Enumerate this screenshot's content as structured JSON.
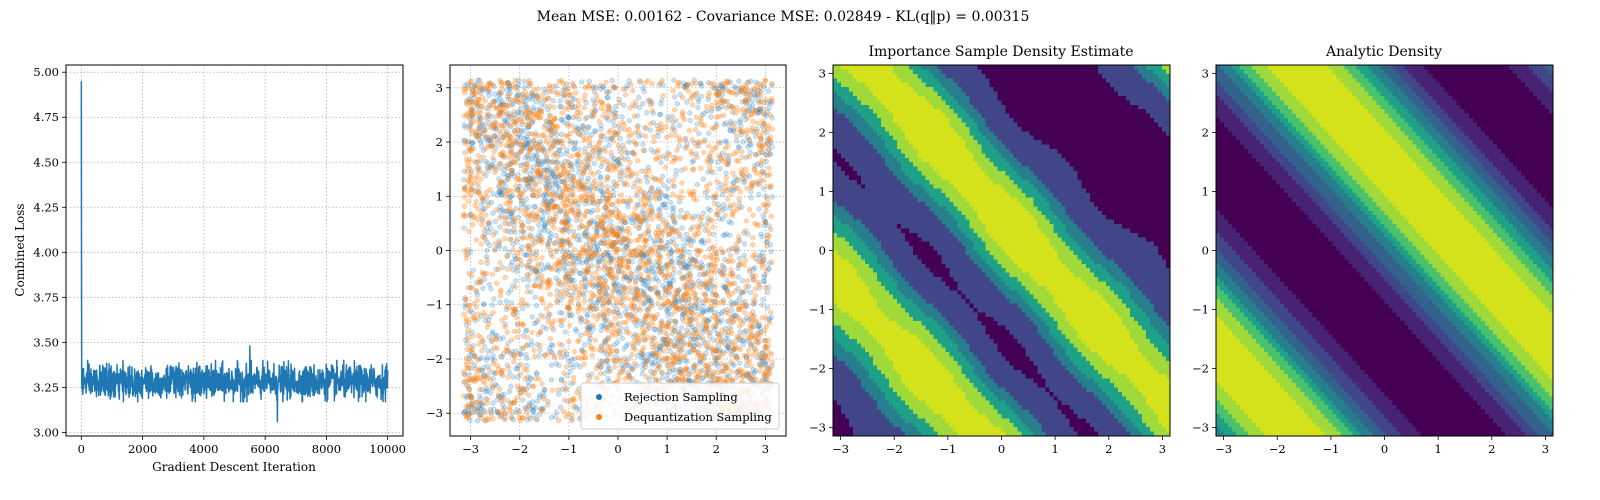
{
  "figure": {
    "suptitle": "Mean MSE: 0.00162 - Covariance MSE: 0.02849 - KL(q‖p) = 0.00315"
  },
  "colors": {
    "blue": "#1f77b4",
    "orange": "#ff7f0e",
    "grid": "#b0b0b0",
    "viridis_levels": [
      "#440154",
      "#482374",
      "#404688",
      "#33638d",
      "#277f8e",
      "#1fa187",
      "#4ac16d",
      "#9fda3a",
      "#d3e21b"
    ]
  },
  "chart_data": [
    {
      "type": "line",
      "title": "",
      "xlabel": "Gradient Descent Iteration",
      "ylabel": "Combined Loss",
      "xlim": [
        -500,
        10500
      ],
      "ylim": [
        2.98,
        5.04
      ],
      "xticks": [
        0,
        2000,
        4000,
        6000,
        8000,
        10000
      ],
      "yticks": [
        3.0,
        3.25,
        3.5,
        3.75,
        4.0,
        4.25,
        4.5,
        4.75,
        5.0
      ],
      "xticklabels": [
        "0",
        "2000",
        "4000",
        "6000",
        "8000",
        "10000"
      ],
      "yticklabels": [
        "3.00",
        "3.25",
        "3.50",
        "3.75",
        "4.00",
        "4.25",
        "4.50",
        "4.75",
        "5.00"
      ],
      "grid": true,
      "series": [
        {
          "name": "loss",
          "color": "#1f77b4",
          "start_value": 4.95,
          "steady_mean": 3.28,
          "steady_band": [
            3.17,
            3.4
          ],
          "spikes": [
            [
              5500,
              3.48
            ],
            [
              6400,
              3.06
            ]
          ],
          "x_range": [
            0,
            10000
          ]
        }
      ]
    },
    {
      "type": "scatter",
      "title": "",
      "xlim": [
        -3.42,
        3.42
      ],
      "ylim": [
        -3.42,
        3.42
      ],
      "xticks": [
        -3,
        -2,
        -1,
        0,
        1,
        2,
        3
      ],
      "yticks": [
        -3,
        -2,
        -1,
        0,
        1,
        2,
        3
      ],
      "xticklabels": [
        "−3",
        "−2",
        "−1",
        "0",
        "1",
        "2",
        "3"
      ],
      "yticklabels": [
        "−3",
        "−2",
        "−1",
        "0",
        "1",
        "2",
        "3"
      ],
      "grid": true,
      "legend": {
        "location": "lower-right",
        "entries": [
          {
            "label": "Rejection Sampling",
            "color": "#1f77b4"
          },
          {
            "label": "Dequantization Sampling",
            "color": "#ff7f0e"
          }
        ]
      },
      "series": [
        {
          "name": "Rejection Sampling",
          "color": "#1f77b4",
          "domain": [
            -3.14159,
            3.14159
          ],
          "density": "anti-diagonal, bands at x+y≈0 and x+y≈±2π"
        },
        {
          "name": "Dequantization Sampling",
          "color": "#ff7f0e",
          "domain": [
            -3.14159,
            3.14159
          ],
          "density": "anti-diagonal, bands at x+y≈0 and x+y≈±2π"
        }
      ]
    },
    {
      "type": "heatmap",
      "title": "Importance Sample Density Estimate",
      "xlim": [
        -3.14159,
        3.14159
      ],
      "ylim": [
        -3.14159,
        3.14159
      ],
      "xticks": [
        -3,
        -2,
        -1,
        0,
        1,
        2,
        3
      ],
      "yticks": [
        -3,
        -2,
        -1,
        0,
        1,
        2,
        3
      ],
      "xticklabels": [
        "−3",
        "−2",
        "−1",
        "0",
        "1",
        "2",
        "3"
      ],
      "yticklabels": [
        "−3",
        "−2",
        "−1",
        "0",
        "1",
        "2",
        "3"
      ],
      "levels": 7,
      "density": "filled contour, high density along x+y≈0.6 and x+y≈−3.5"
    },
    {
      "type": "heatmap",
      "title": "Analytic Density",
      "xlim": [
        -3.14159,
        3.14159
      ],
      "ylim": [
        -3.14159,
        3.14159
      ],
      "xticks": [
        -3,
        -2,
        -1,
        0,
        1,
        2,
        3
      ],
      "yticks": [
        -3,
        -2,
        -1,
        0,
        1,
        2,
        3
      ],
      "xticklabels": [
        "−3",
        "−2",
        "−1",
        "0",
        "1",
        "2",
        "3"
      ],
      "yticklabels": [
        "−3",
        "−2",
        "−1",
        "0",
        "1",
        "2",
        "3"
      ],
      "levels": 9,
      "density": "filled contour, stripes along anti-diagonal, maxima near x+y≈1.5 and x+y≈−4.8"
    }
  ]
}
